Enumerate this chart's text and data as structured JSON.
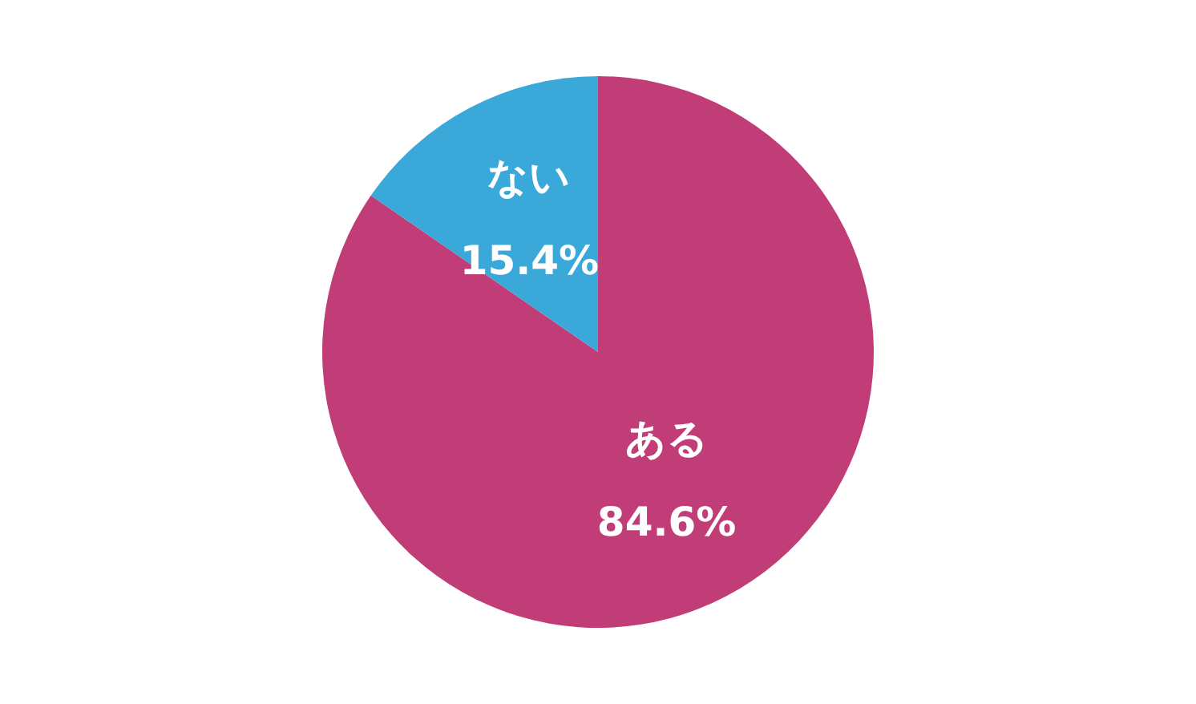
{
  "chart_data": {
    "type": "pie",
    "categories": [
      "ある",
      "ない"
    ],
    "values": [
      84.6,
      15.4
    ],
    "colors": [
      "#c13d78",
      "#3aa8d8"
    ],
    "value_labels": [
      "84.6%",
      "15.4%"
    ]
  }
}
